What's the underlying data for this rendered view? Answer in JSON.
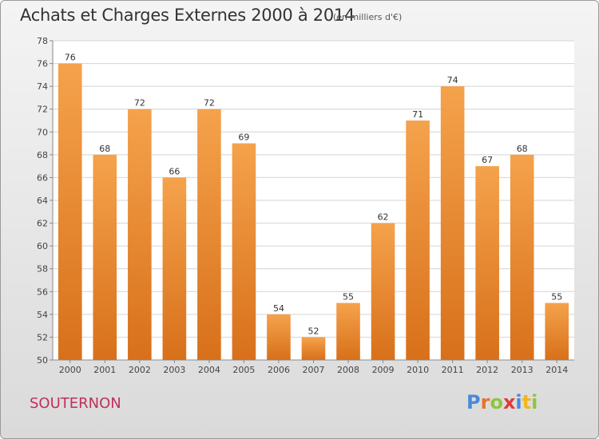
{
  "chart_data": {
    "type": "bar",
    "title": "Achats et Charges Externes 2000 à 2014",
    "subtitle": "(en milliers d'€)",
    "categories": [
      "2000",
      "2001",
      "2002",
      "2003",
      "2004",
      "2005",
      "2006",
      "2007",
      "2008",
      "2009",
      "2010",
      "2011",
      "2012",
      "2013",
      "2014"
    ],
    "values": [
      76,
      68,
      72,
      66,
      72,
      69,
      54,
      52,
      55,
      62,
      71,
      74,
      67,
      68,
      55
    ],
    "ylim": [
      50,
      78
    ],
    "ytick_step": 2,
    "grid": true,
    "bar_color": "#f08a2c",
    "xlabel": "",
    "ylabel": ""
  },
  "location": "SOUTERNON",
  "logo": {
    "text": "Proxiti",
    "letters": [
      {
        "ch": "P",
        "color": "#4a8ad8"
      },
      {
        "ch": "r",
        "color": "#e8732a"
      },
      {
        "ch": "o",
        "color": "#8cc63e"
      },
      {
        "ch": "x",
        "color": "#e03a3a"
      },
      {
        "ch": "i",
        "color": "#4a8ad8"
      },
      {
        "ch": "t",
        "color": "#f2b51e"
      },
      {
        "ch": "i",
        "color": "#8cc63e"
      }
    ]
  }
}
